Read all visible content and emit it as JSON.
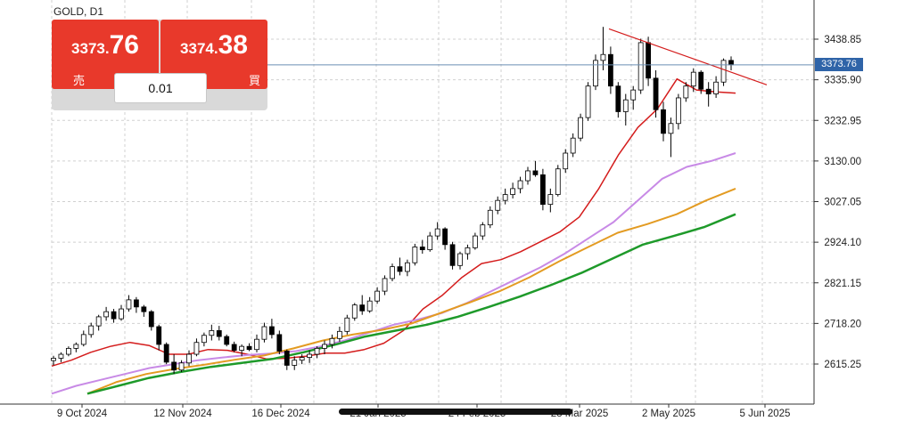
{
  "symbol_title": "GOLD, D1",
  "trade_panel": {
    "sell": {
      "price_main": "3373.",
      "price_big": "76",
      "label": "売"
    },
    "buy": {
      "price_main": "3374.",
      "price_big": "38",
      "label": "買"
    },
    "lot": "0.01"
  },
  "current_price_label": "3373.76",
  "colors": {
    "bull_bear": "#000000",
    "ema_short": "#d41c1c",
    "ma_violet": "#c88ae6",
    "ma_orange": "#e39b22",
    "ma_green": "#1e9a2a",
    "trendline": "#d41c1c",
    "price_line": "#6b8fb3",
    "trade_button": "#e8392b"
  },
  "chart_data": {
    "type": "candlestick",
    "y_axis_labels": [
      "3438.85",
      "3335.90",
      "3232.95",
      "3130.00",
      "3027.05",
      "2924.10",
      "2821.15",
      "2718.20",
      "2615.25"
    ],
    "x_axis_labels": [
      "9 Oct 2024",
      "12 Nov 2024",
      "16 Dec 2024",
      "21 Jan 2025",
      "24 Feb 2025",
      "28 Mar 2025",
      "2 May 2025",
      "5 Jun 2025"
    ],
    "ylim": [
      2540,
      3480
    ],
    "current_price": 3373.76,
    "grid": true,
    "series": [
      {
        "name": "",
        "kind": "ema_fast",
        "values": [
          2610,
          2625,
          2645,
          2660,
          2670,
          2662,
          2640,
          2640,
          2652,
          2650,
          2640,
          2628,
          2630,
          2635,
          2643,
          2643,
          2652,
          2668,
          2700,
          2755,
          2790,
          2835,
          2870,
          2880,
          2900,
          2925,
          2950,
          2988,
          3060,
          3145,
          3215,
          3262,
          3338,
          3310,
          3305,
          3302
        ]
      },
      {
        "name": "",
        "kind": "ma_violet",
        "values": [
          2540,
          2560,
          2575,
          2590,
          2605,
          2615,
          2625,
          2632,
          2638,
          2642,
          2648,
          2660,
          2675,
          2695,
          2715,
          2728,
          2745,
          2770,
          2800,
          2830,
          2860,
          2895,
          2935,
          2975,
          3030,
          3085,
          3115,
          3130,
          3150
        ]
      },
      {
        "name": "",
        "kind": "ma_orange",
        "values": [
          2540,
          2570,
          2590,
          2603,
          2614,
          2626,
          2637,
          2655,
          2675,
          2690,
          2702,
          2718,
          2745,
          2772,
          2800,
          2835,
          2875,
          2912,
          2948,
          2970,
          2995,
          3030,
          3060
        ]
      },
      {
        "name": "",
        "kind": "ma_green",
        "values": [
          2540,
          2560,
          2580,
          2595,
          2608,
          2618,
          2628,
          2645,
          2664,
          2685,
          2700,
          2715,
          2735,
          2760,
          2786,
          2815,
          2846,
          2882,
          2918,
          2940,
          2963,
          2995
        ]
      },
      {
        "name": "",
        "kind": "trendline",
        "values": [
          3465,
          3323
        ]
      }
    ],
    "candles": [
      [
        2624,
        2636,
        2612,
        2630
      ],
      [
        2630,
        2645,
        2620,
        2640
      ],
      [
        2640,
        2660,
        2635,
        2655
      ],
      [
        2655,
        2670,
        2645,
        2665
      ],
      [
        2665,
        2700,
        2660,
        2690
      ],
      [
        2690,
        2720,
        2682,
        2712
      ],
      [
        2712,
        2740,
        2700,
        2735
      ],
      [
        2735,
        2760,
        2725,
        2748
      ],
      [
        2748,
        2755,
        2720,
        2730
      ],
      [
        2730,
        2765,
        2725,
        2755
      ],
      [
        2755,
        2790,
        2748,
        2778
      ],
      [
        2778,
        2785,
        2745,
        2760
      ],
      [
        2760,
        2765,
        2735,
        2748
      ],
      [
        2748,
        2752,
        2700,
        2710
      ],
      [
        2710,
        2715,
        2650,
        2665
      ],
      [
        2665,
        2670,
        2615,
        2620
      ],
      [
        2620,
        2640,
        2590,
        2600
      ],
      [
        2600,
        2625,
        2595,
        2618
      ],
      [
        2618,
        2650,
        2610,
        2640
      ],
      [
        2640,
        2680,
        2635,
        2670
      ],
      [
        2670,
        2695,
        2660,
        2688
      ],
      [
        2688,
        2715,
        2675,
        2700
      ],
      [
        2700,
        2712,
        2675,
        2685
      ],
      [
        2685,
        2690,
        2660,
        2665
      ],
      [
        2665,
        2672,
        2645,
        2650
      ],
      [
        2650,
        2665,
        2635,
        2660
      ],
      [
        2660,
        2668,
        2648,
        2652
      ],
      [
        2652,
        2690,
        2645,
        2678
      ],
      [
        2678,
        2720,
        2670,
        2710
      ],
      [
        2710,
        2730,
        2680,
        2690
      ],
      [
        2690,
        2700,
        2640,
        2648
      ],
      [
        2648,
        2652,
        2600,
        2612
      ],
      [
        2612,
        2635,
        2600,
        2625
      ],
      [
        2625,
        2640,
        2615,
        2632
      ],
      [
        2632,
        2650,
        2618,
        2640
      ],
      [
        2640,
        2660,
        2630,
        2655
      ],
      [
        2655,
        2675,
        2640,
        2665
      ],
      [
        2665,
        2690,
        2655,
        2680
      ],
      [
        2680,
        2710,
        2672,
        2698
      ],
      [
        2698,
        2740,
        2690,
        2732
      ],
      [
        2732,
        2770,
        2725,
        2765
      ],
      [
        2765,
        2790,
        2740,
        2750
      ],
      [
        2750,
        2785,
        2745,
        2775
      ],
      [
        2775,
        2810,
        2768,
        2800
      ],
      [
        2800,
        2840,
        2790,
        2832
      ],
      [
        2832,
        2870,
        2825,
        2862
      ],
      [
        2862,
        2885,
        2840,
        2850
      ],
      [
        2850,
        2880,
        2838,
        2872
      ],
      [
        2872,
        2920,
        2865,
        2912
      ],
      [
        2912,
        2930,
        2895,
        2905
      ],
      [
        2905,
        2950,
        2900,
        2940
      ],
      [
        2940,
        2975,
        2930,
        2958
      ],
      [
        2958,
        2962,
        2905,
        2918
      ],
      [
        2918,
        2925,
        2855,
        2865
      ],
      [
        2865,
        2900,
        2855,
        2895
      ],
      [
        2895,
        2918,
        2880,
        2910
      ],
      [
        2910,
        2948,
        2905,
        2940
      ],
      [
        2940,
        2975,
        2930,
        2968
      ],
      [
        2968,
        3015,
        2960,
        3005
      ],
      [
        3005,
        3040,
        2995,
        3030
      ],
      [
        3030,
        3060,
        3020,
        3045
      ],
      [
        3045,
        3075,
        3035,
        3060
      ],
      [
        3060,
        3090,
        3048,
        3080
      ],
      [
        3080,
        3115,
        3070,
        3105
      ],
      [
        3105,
        3130,
        3090,
        3095
      ],
      [
        3095,
        3110,
        3005,
        3020
      ],
      [
        3020,
        3060,
        3000,
        3045
      ],
      [
        3045,
        3120,
        3040,
        3110
      ],
      [
        3110,
        3160,
        3100,
        3150
      ],
      [
        3150,
        3200,
        3140,
        3188
      ],
      [
        3188,
        3250,
        3180,
        3240
      ],
      [
        3240,
        3330,
        3232,
        3320
      ],
      [
        3320,
        3400,
        3310,
        3385
      ],
      [
        3385,
        3470,
        3360,
        3400
      ],
      [
        3400,
        3420,
        3300,
        3320
      ],
      [
        3320,
        3330,
        3240,
        3255
      ],
      [
        3255,
        3300,
        3220,
        3285
      ],
      [
        3285,
        3320,
        3260,
        3310
      ],
      [
        3310,
        3440,
        3300,
        3430
      ],
      [
        3430,
        3445,
        3320,
        3340
      ],
      [
        3340,
        3360,
        3240,
        3260
      ],
      [
        3260,
        3280,
        3180,
        3200
      ],
      [
        3200,
        3240,
        3140,
        3225
      ],
      [
        3225,
        3300,
        3210,
        3290
      ],
      [
        3290,
        3330,
        3280,
        3320
      ],
      [
        3320,
        3365,
        3305,
        3355
      ],
      [
        3355,
        3360,
        3300,
        3312
      ],
      [
        3312,
        3330,
        3268,
        3300
      ],
      [
        3300,
        3345,
        3290,
        3330
      ],
      [
        3330,
        3390,
        3320,
        3385
      ],
      [
        3385,
        3395,
        3360,
        3374
      ]
    ]
  }
}
